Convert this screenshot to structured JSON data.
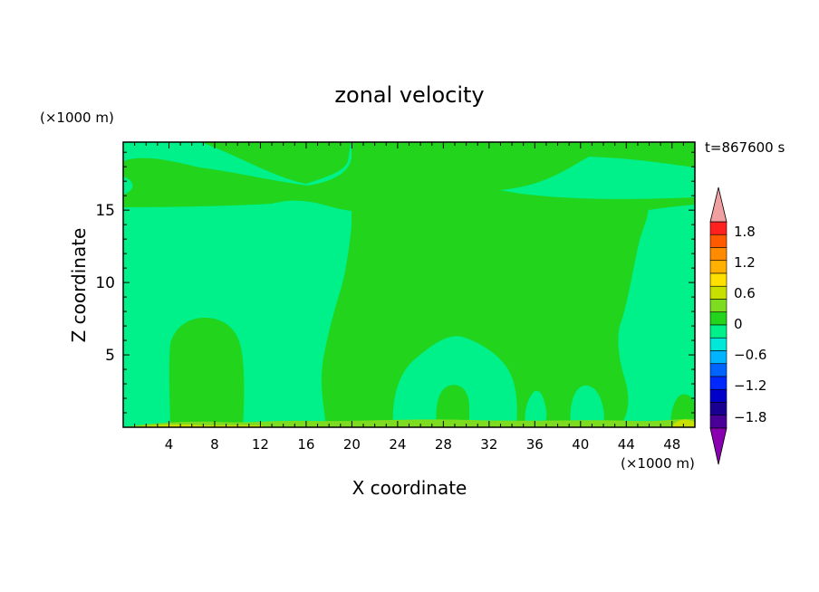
{
  "chart_data": {
    "type": "heatmap",
    "title": "zonal velocity",
    "time_label": "t=867600 s",
    "xlabel": "X coordinate",
    "ylabel": "Z coordinate",
    "x_unit": "(×1000 m)",
    "y_unit": "(×1000 m)",
    "xlim": [
      0,
      50
    ],
    "ylim": [
      0,
      19.7
    ],
    "x_ticks": [
      "4",
      "8",
      "12",
      "16",
      "20",
      "24",
      "28",
      "32",
      "36",
      "40",
      "44",
      "48"
    ],
    "y_ticks": [
      "5",
      "10",
      "15"
    ],
    "colorbar": {
      "labels": [
        "1.8",
        "1.2",
        "0.6",
        "0",
        "−0.6",
        "−1.2",
        "−1.8"
      ],
      "levels": [
        2.1,
        1.8,
        1.5,
        1.2,
        0.9,
        0.6,
        0.3,
        0,
        -0.3,
        -0.6,
        -0.9,
        -1.2,
        -1.5,
        -1.8,
        -2.1
      ],
      "colors": [
        "#ff2020",
        "#ff5a00",
        "#ff8c00",
        "#ffb000",
        "#ffe000",
        "#c8e000",
        "#7ddc1f",
        "#22d41c",
        "#00f08a",
        "#00e8d8",
        "#00b4ff",
        "#0064ff",
        "#0028ff",
        "#0000c8",
        "#1a0090",
        "#4a0098"
      ],
      "over_color": "#f0a0a0",
      "under_color": "#8a00b0"
    },
    "regions": [
      {
        "value_range": [
          -0.3,
          0
        ],
        "color": "#00f08a",
        "description": "background"
      },
      {
        "value_range": [
          0,
          0.3
        ],
        "color": "#22d41c",
        "description": "positive zones"
      },
      {
        "value_range": [
          0.3,
          0.6
        ],
        "color": "#7ddc1f",
        "description": "near-surface streaks"
      },
      {
        "value_range": [
          0.6,
          0.9
        ],
        "color": "#c8e000",
        "description": "near-surface streaks"
      }
    ]
  }
}
